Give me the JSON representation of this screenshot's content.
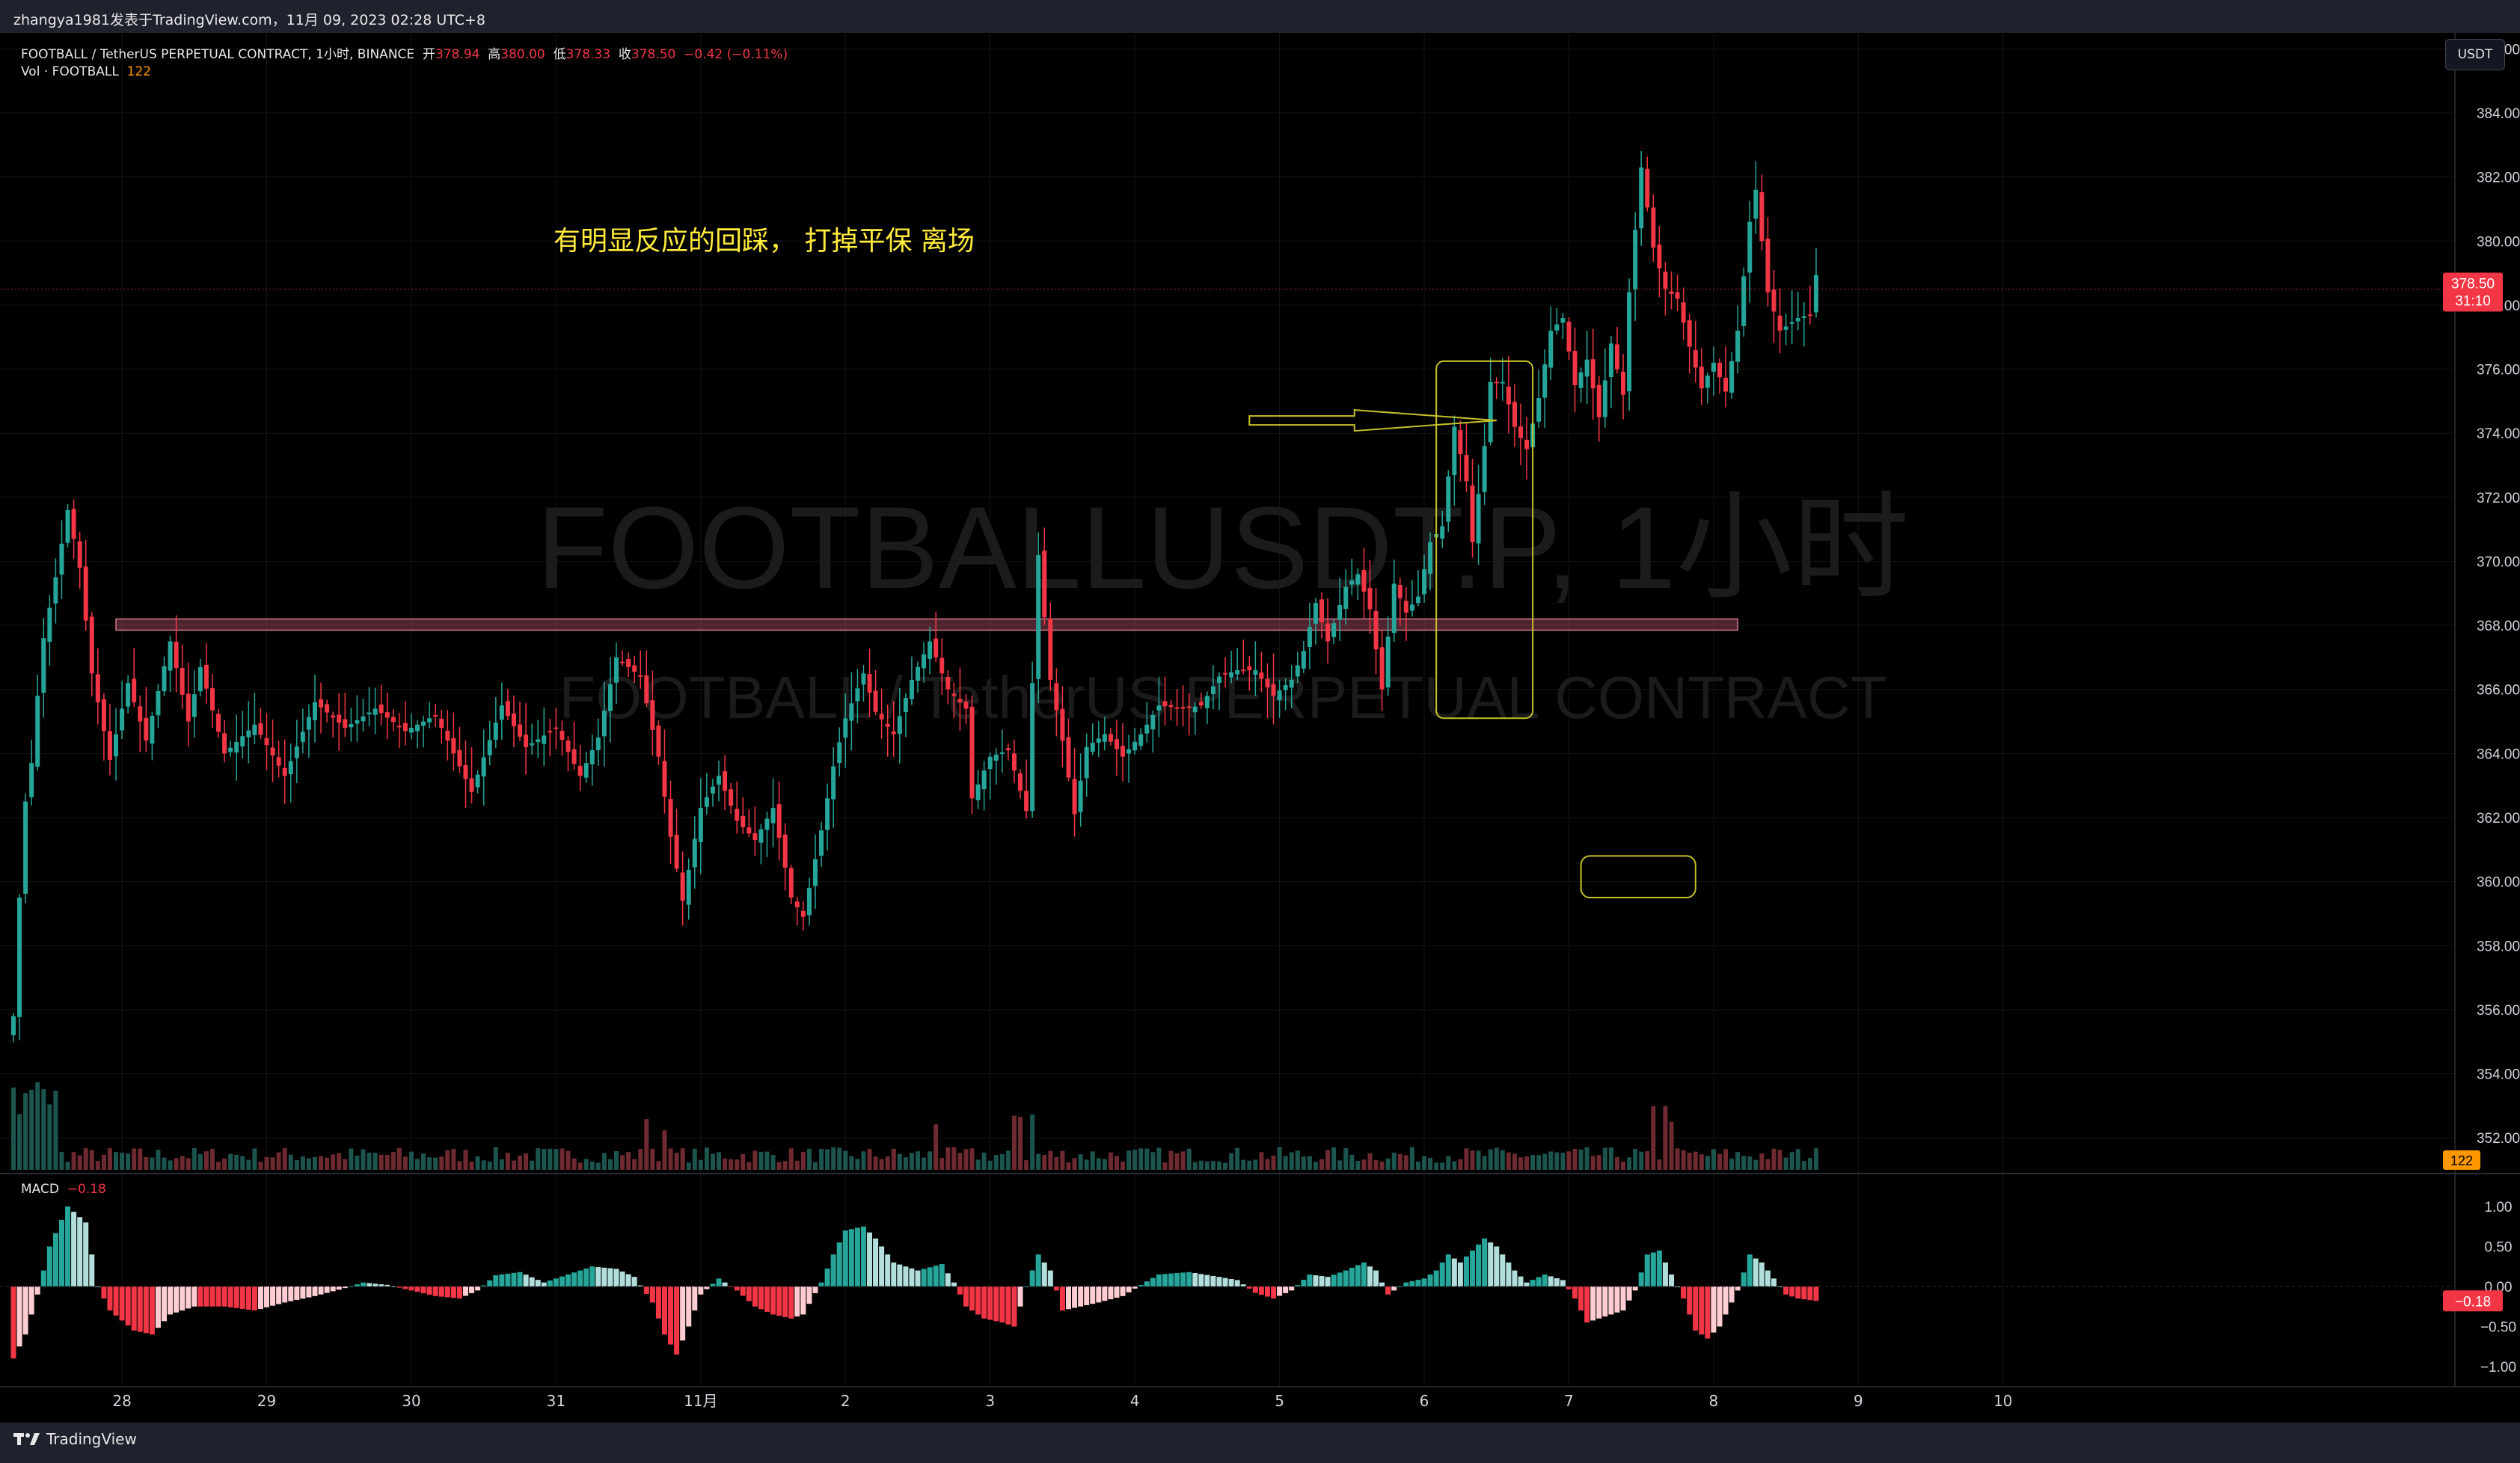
{
  "header": {
    "attribution": "zhangya1981发表于TradingView.com，11月 09, 2023 02:28 UTC+8"
  },
  "legend": {
    "symbol_line": "FOOTBALL / TetherUS PERPETUAL CONTRACT, 1小时, BINANCE",
    "open_label": "开",
    "open_value": "378.94",
    "high_label": "高",
    "high_value": "380.00",
    "low_label": "低",
    "low_value": "378.33",
    "close_label": "收",
    "close_value": "378.50",
    "change": "−0.42 (−0.11%)",
    "vol_label": "Vol · FOOTBALL",
    "vol_value": "122",
    "macd_label": "MACD",
    "macd_value": "−0.18"
  },
  "watermark": {
    "line1": "FOOTBALLUSDT.P, 1小时",
    "line2": "FOOTBALL / TetherUS PERPETUAL CONTRACT"
  },
  "annotation": {
    "text": "有明显反应的回踩， 打掉平保 离场",
    "color": "#ffeb3b"
  },
  "currency_button": "USDT",
  "price_tag": {
    "price": "378.50",
    "countdown": "31:10",
    "color": "#f23645"
  },
  "volume_tag": {
    "value": "122",
    "color": "#ff9800"
  },
  "macd_tag": {
    "value": "−0.18",
    "color": "#f23645"
  },
  "footer": {
    "brand": "TradingView"
  },
  "colors": {
    "up": "#26a69a",
    "down": "#f23645",
    "up_light": "#b2dfdb",
    "down_light": "#ffcdd2",
    "zone": "#b14f66",
    "box": "#c6c12a",
    "grid": "#141414",
    "axis_text": "#d1d4dc"
  },
  "chart_data": {
    "type": "candlestick",
    "timeframe": "1小时",
    "price_axis": {
      "range": [
        351,
        386.5
      ],
      "ticks": [
        "352.00",
        "354.00",
        "356.00",
        "358.00",
        "360.00",
        "362.00",
        "364.00",
        "366.00",
        "368.00",
        "370.00",
        "372.00",
        "374.00",
        "376.00",
        "378.00",
        "380.00",
        "382.00",
        "384.00",
        "386.00"
      ]
    },
    "macd_axis": {
      "range": [
        -1.2,
        1.2
      ],
      "ticks": [
        "1.00",
        "0.50",
        "0.00",
        "−0.50",
        "−1.00"
      ]
    },
    "time_axis": {
      "labels": [
        "28",
        "29",
        "30",
        "31",
        "11月",
        "2",
        "3",
        "4",
        "5",
        "6",
        "7",
        "8",
        "9",
        "10"
      ],
      "label_hours": [
        18,
        42,
        66,
        90,
        114,
        138,
        162,
        186,
        210,
        234,
        258,
        282,
        306,
        330
      ]
    },
    "last_price": 378.5,
    "resistance_zone": {
      "low": 367.85,
      "high": 368.2,
      "from_hour": 17,
      "to_hour": 286
    },
    "marked_box": {
      "low": 365.1,
      "high": 376.25,
      "from_hour": 236,
      "to_hour": 252
    },
    "target_box": {
      "low": 359.5,
      "high": 360.8,
      "from_hour": 260,
      "to_hour": 279
    },
    "arrow": {
      "from_hour": 205,
      "to_hour": 246,
      "price": 374.4
    },
    "anchors": [
      [
        0,
        355.8
      ],
      [
        1,
        359.5
      ],
      [
        2,
        362.5
      ],
      [
        3,
        363.7
      ],
      [
        4,
        365.8
      ],
      [
        5,
        367.6
      ],
      [
        7,
        369.5
      ],
      [
        9,
        371.6
      ],
      [
        11,
        369.8
      ],
      [
        13,
        366.5
      ],
      [
        16,
        363.8
      ],
      [
        19,
        366.2
      ],
      [
        22,
        364.4
      ],
      [
        26,
        367.5
      ],
      [
        29,
        365.0
      ],
      [
        31,
        366.7
      ],
      [
        35,
        364.0
      ],
      [
        40,
        364.9
      ],
      [
        45,
        363.3
      ],
      [
        50,
        365.6
      ],
      [
        55,
        364.8
      ],
      [
        60,
        365.4
      ],
      [
        65,
        364.7
      ],
      [
        70,
        365.2
      ],
      [
        74,
        363.6
      ],
      [
        76,
        362.8
      ],
      [
        81,
        365.5
      ],
      [
        85,
        364.2
      ],
      [
        90,
        364.8
      ],
      [
        94,
        363.3
      ],
      [
        97,
        364.5
      ],
      [
        100,
        367.0
      ],
      [
        104,
        366.4
      ],
      [
        107,
        363.9
      ],
      [
        109,
        361.4
      ],
      [
        111,
        359.4
      ],
      [
        114,
        362.3
      ],
      [
        117,
        363.3
      ],
      [
        120,
        361.9
      ],
      [
        123,
        361.3
      ],
      [
        126,
        362.3
      ],
      [
        129,
        359.5
      ],
      [
        131,
        358.9
      ],
      [
        134,
        361.6
      ],
      [
        136,
        363.6
      ],
      [
        138,
        365.1
      ],
      [
        141,
        366.5
      ],
      [
        143,
        365.3
      ],
      [
        146,
        364.6
      ],
      [
        149,
        366.3
      ],
      [
        152,
        367.5
      ],
      [
        155,
        366.0
      ],
      [
        158,
        365.4
      ],
      [
        159,
        362.6
      ],
      [
        162,
        363.9
      ],
      [
        165,
        364.1
      ],
      [
        168,
        362.2
      ],
      [
        170,
        370.2
      ],
      [
        172,
        366.3
      ],
      [
        174,
        364.4
      ],
      [
        176,
        362.1
      ],
      [
        178,
        364.2
      ],
      [
        181,
        364.6
      ],
      [
        184,
        363.9
      ],
      [
        187,
        364.6
      ],
      [
        190,
        365.5
      ],
      [
        194,
        365.4
      ],
      [
        197,
        365.5
      ],
      [
        200,
        366.4
      ],
      [
        203,
        366.6
      ],
      [
        206,
        366.6
      ],
      [
        209,
        365.8
      ],
      [
        212,
        366.3
      ],
      [
        214,
        367.2
      ],
      [
        216,
        368.7
      ],
      [
        218,
        367.5
      ],
      [
        221,
        369.2
      ],
      [
        223,
        369.6
      ],
      [
        225,
        368.5
      ],
      [
        227,
        366.0
      ],
      [
        229,
        369.3
      ],
      [
        231,
        368.4
      ],
      [
        233,
        368.9
      ],
      [
        235,
        370.6
      ],
      [
        237,
        371.1
      ],
      [
        239,
        374.2
      ],
      [
        241,
        372.5
      ],
      [
        242,
        370.6
      ],
      [
        244,
        373.6
      ],
      [
        245,
        375.6
      ],
      [
        247,
        375.6
      ],
      [
        249,
        374.2
      ],
      [
        251,
        373.5
      ],
      [
        253,
        375.1
      ],
      [
        255,
        377.2
      ],
      [
        257,
        377.6
      ],
      [
        259,
        375.5
      ],
      [
        261,
        376.3
      ],
      [
        263,
        374.5
      ],
      [
        265,
        376.8
      ],
      [
        267,
        375.2
      ],
      [
        268,
        378.4
      ],
      [
        270,
        382.3
      ],
      [
        272,
        379.8
      ],
      [
        274,
        378.5
      ],
      [
        276,
        378.2
      ],
      [
        278,
        376.7
      ],
      [
        280,
        375.4
      ],
      [
        282,
        376.2
      ],
      [
        284,
        375.3
      ],
      [
        286,
        377.2
      ],
      [
        288,
        380.6
      ],
      [
        289,
        381.6
      ],
      [
        291,
        378.4
      ],
      [
        293,
        377.2
      ],
      [
        296,
        377.6
      ],
      [
        298,
        377.7
      ],
      [
        299,
        378.94
      ]
    ],
    "macd_anchors": [
      [
        0,
        -0.9
      ],
      [
        2,
        -0.6
      ],
      [
        4,
        -0.1
      ],
      [
        6,
        0.5
      ],
      [
        9,
        1.0
      ],
      [
        12,
        0.8
      ],
      [
        14,
        0.0
      ],
      [
        16,
        -0.3
      ],
      [
        20,
        -0.55
      ],
      [
        23,
        -0.6
      ],
      [
        26,
        -0.35
      ],
      [
        30,
        -0.25
      ],
      [
        35,
        -0.25
      ],
      [
        40,
        -0.3
      ],
      [
        45,
        -0.2
      ],
      [
        50,
        -0.12
      ],
      [
        55,
        -0.02
      ],
      [
        58,
        0.05
      ],
      [
        62,
        0.02
      ],
      [
        66,
        -0.05
      ],
      [
        70,
        -0.12
      ],
      [
        74,
        -0.15
      ],
      [
        77,
        -0.05
      ],
      [
        80,
        0.14
      ],
      [
        84,
        0.18
      ],
      [
        88,
        0.05
      ],
      [
        92,
        0.15
      ],
      [
        96,
        0.25
      ],
      [
        100,
        0.22
      ],
      [
        103,
        0.12
      ],
      [
        106,
        -0.2
      ],
      [
        108,
        -0.6
      ],
      [
        110,
        -0.85
      ],
      [
        112,
        -0.5
      ],
      [
        114,
        -0.1
      ],
      [
        117,
        0.1
      ],
      [
        120,
        -0.05
      ],
      [
        123,
        -0.25
      ],
      [
        126,
        -0.35
      ],
      [
        129,
        -0.4
      ],
      [
        131,
        -0.35
      ],
      [
        134,
        0.05
      ],
      [
        136,
        0.4
      ],
      [
        138,
        0.7
      ],
      [
        141,
        0.75
      ],
      [
        143,
        0.6
      ],
      [
        146,
        0.3
      ],
      [
        150,
        0.2
      ],
      [
        154,
        0.28
      ],
      [
        156,
        0.05
      ],
      [
        158,
        -0.25
      ],
      [
        161,
        -0.4
      ],
      [
        164,
        -0.45
      ],
      [
        166,
        -0.5
      ],
      [
        168,
        0.0
      ],
      [
        170,
        0.4
      ],
      [
        172,
        0.2
      ],
      [
        174,
        -0.3
      ],
      [
        177,
        -0.25
      ],
      [
        180,
        -0.2
      ],
      [
        184,
        -0.12
      ],
      [
        187,
        0.02
      ],
      [
        190,
        0.15
      ],
      [
        195,
        0.18
      ],
      [
        200,
        0.12
      ],
      [
        203,
        0.08
      ],
      [
        206,
        -0.08
      ],
      [
        209,
        -0.15
      ],
      [
        212,
        -0.05
      ],
      [
        215,
        0.15
      ],
      [
        218,
        0.12
      ],
      [
        221,
        0.2
      ],
      [
        224,
        0.3
      ],
      [
        226,
        0.2
      ],
      [
        228,
        -0.1
      ],
      [
        231,
        0.05
      ],
      [
        234,
        0.1
      ],
      [
        236,
        0.2
      ],
      [
        238,
        0.4
      ],
      [
        240,
        0.3
      ],
      [
        242,
        0.45
      ],
      [
        244,
        0.6
      ],
      [
        246,
        0.5
      ],
      [
        249,
        0.2
      ],
      [
        251,
        0.05
      ],
      [
        254,
        0.15
      ],
      [
        257,
        0.08
      ],
      [
        259,
        -0.15
      ],
      [
        261,
        -0.45
      ],
      [
        263,
        -0.4
      ],
      [
        265,
        -0.35
      ],
      [
        267,
        -0.3
      ],
      [
        269,
        -0.05
      ],
      [
        271,
        0.4
      ],
      [
        273,
        0.45
      ],
      [
        275,
        0.15
      ],
      [
        277,
        -0.15
      ],
      [
        279,
        -0.55
      ],
      [
        281,
        -0.65
      ],
      [
        283,
        -0.5
      ],
      [
        286,
        -0.05
      ],
      [
        288,
        0.4
      ],
      [
        290,
        0.3
      ],
      [
        292,
        0.1
      ],
      [
        294,
        -0.1
      ],
      [
        296,
        -0.15
      ],
      [
        299,
        -0.18
      ]
    ],
    "volume_note": "Volume histogram shown beneath candles, latest bar 122"
  }
}
